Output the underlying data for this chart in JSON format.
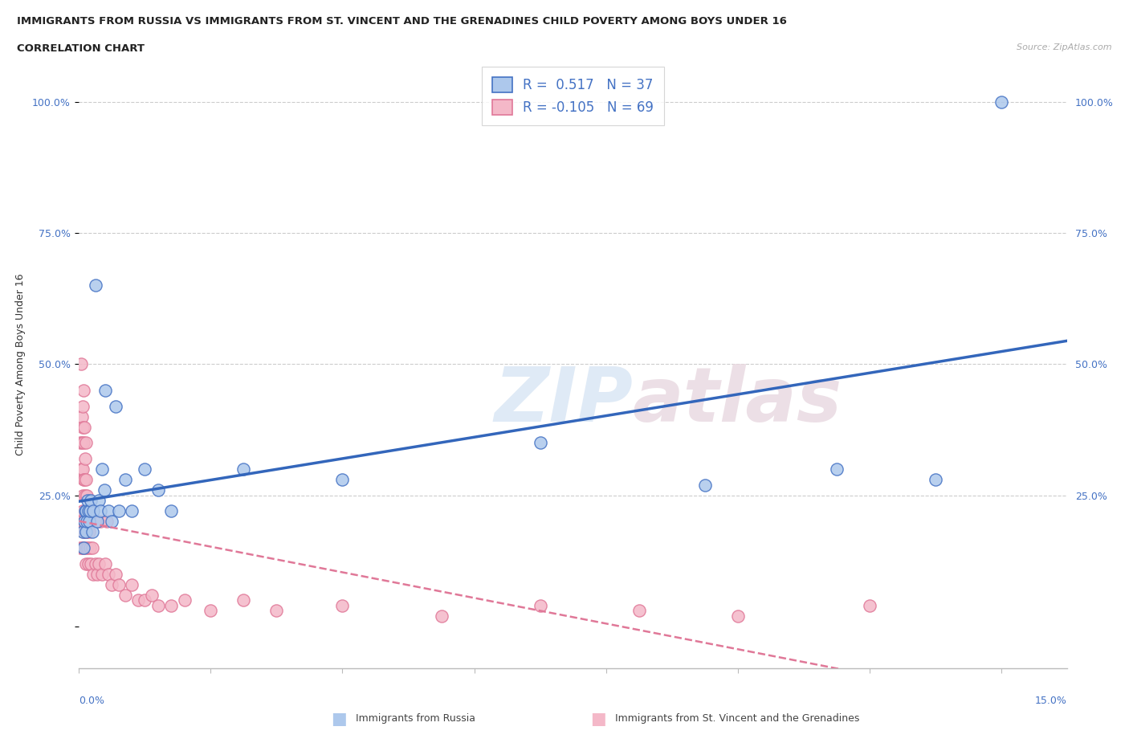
{
  "title_line1": "IMMIGRANTS FROM RUSSIA VS IMMIGRANTS FROM ST. VINCENT AND THE GRENADINES CHILD POVERTY AMONG BOYS UNDER 16",
  "title_line2": "CORRELATION CHART",
  "source": "Source: ZipAtlas.com",
  "ylabel": "Child Poverty Among Boys Under 16",
  "russia_color": "#adc8ec",
  "russia_edge_color": "#4472c4",
  "stv_color": "#f4b8c8",
  "stv_edge_color": "#e07898",
  "russia_line_color": "#3366bb",
  "stv_line_color": "#e07898",
  "xlim": [
    0,
    15
  ],
  "ylim": [
    -0.08,
    1.08
  ],
  "yticks": [
    0.0,
    0.25,
    0.5,
    0.75,
    1.0
  ],
  "ytick_labels_left": [
    "",
    "25.0%",
    "50.0%",
    "75.0%",
    "100.0%"
  ],
  "ytick_labels_right": [
    "25.0%",
    "50.0%",
    "75.0%",
    "100.0%"
  ],
  "legend_russia": "R =  0.517   N = 37",
  "legend_stv": "R = -0.105   N = 69",
  "legend_label_russia": "Immigrants from Russia",
  "legend_label_stv": "Immigrants from St. Vincent and the Grenadines",
  "russia_x": [
    0.05,
    0.07,
    0.08,
    0.09,
    0.1,
    0.11,
    0.12,
    0.13,
    0.14,
    0.15,
    0.16,
    0.18,
    0.2,
    0.22,
    0.25,
    0.28,
    0.3,
    0.32,
    0.35,
    0.38,
    0.4,
    0.45,
    0.5,
    0.55,
    0.6,
    0.7,
    0.8,
    1.0,
    1.2,
    1.4,
    2.5,
    4.0,
    7.0,
    9.5,
    11.5,
    13.0,
    14.0
  ],
  "russia_y": [
    0.18,
    0.15,
    0.2,
    0.22,
    0.18,
    0.22,
    0.2,
    0.24,
    0.22,
    0.2,
    0.22,
    0.24,
    0.18,
    0.22,
    0.65,
    0.2,
    0.24,
    0.22,
    0.3,
    0.26,
    0.45,
    0.22,
    0.2,
    0.42,
    0.22,
    0.28,
    0.22,
    0.3,
    0.26,
    0.22,
    0.3,
    0.28,
    0.35,
    0.27,
    0.3,
    0.28,
    1.0
  ],
  "stv_x": [
    0.01,
    0.02,
    0.02,
    0.03,
    0.03,
    0.03,
    0.04,
    0.04,
    0.04,
    0.05,
    0.05,
    0.05,
    0.06,
    0.06,
    0.06,
    0.06,
    0.07,
    0.07,
    0.07,
    0.07,
    0.08,
    0.08,
    0.08,
    0.09,
    0.09,
    0.09,
    0.1,
    0.1,
    0.1,
    0.1,
    0.1,
    0.11,
    0.12,
    0.12,
    0.13,
    0.14,
    0.15,
    0.16,
    0.18,
    0.2,
    0.22,
    0.25,
    0.28,
    0.3,
    0.32,
    0.35,
    0.4,
    0.42,
    0.45,
    0.5,
    0.55,
    0.6,
    0.7,
    0.8,
    0.9,
    1.0,
    1.1,
    1.2,
    1.4,
    1.6,
    2.0,
    2.5,
    3.0,
    4.0,
    5.5,
    7.0,
    8.5,
    10.0,
    12.0
  ],
  "stv_y": [
    0.2,
    0.15,
    0.35,
    0.2,
    0.3,
    0.5,
    0.2,
    0.35,
    0.4,
    0.15,
    0.25,
    0.38,
    0.15,
    0.22,
    0.3,
    0.42,
    0.18,
    0.28,
    0.35,
    0.45,
    0.2,
    0.28,
    0.38,
    0.18,
    0.25,
    0.32,
    0.12,
    0.18,
    0.22,
    0.28,
    0.35,
    0.15,
    0.18,
    0.25,
    0.15,
    0.12,
    0.18,
    0.15,
    0.12,
    0.15,
    0.1,
    0.12,
    0.1,
    0.12,
    0.2,
    0.1,
    0.12,
    0.2,
    0.1,
    0.08,
    0.1,
    0.08,
    0.06,
    0.08,
    0.05,
    0.05,
    0.06,
    0.04,
    0.04,
    0.05,
    0.03,
    0.05,
    0.03,
    0.04,
    0.02,
    0.04,
    0.03,
    0.02,
    0.04
  ]
}
